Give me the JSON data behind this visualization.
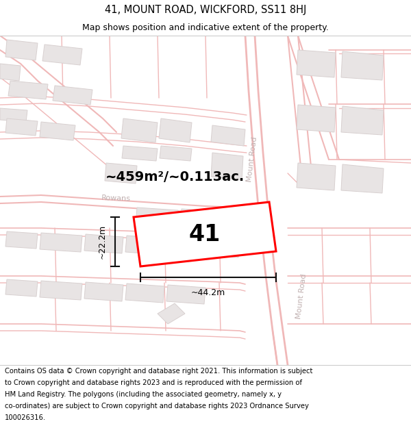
{
  "title_line1": "41, MOUNT ROAD, WICKFORD, SS11 8HJ",
  "title_line2": "Map shows position and indicative extent of the property.",
  "footer_text": "Contains OS data © Crown copyright and database right 2021. This information is subject to Crown copyright and database rights 2023 and is reproduced with the permission of HM Land Registry. The polygons (including the associated geometry, namely x, y co-ordinates) are subject to Crown copyright and database rights 2023 Ordnance Survey 100026316.",
  "area_label": "~459m²/~0.113ac.",
  "number_label": "41",
  "width_label": "~44.2m",
  "height_label": "~22.2m",
  "road_label_top": "Mount Road",
  "road_label_bot": "Mount Road",
  "street_label": "Rowans",
  "map_bg": "#ffffff",
  "road_line_color": "#f0b8b8",
  "road_fill_color": "#fde8e8",
  "building_color": "#e8e4e4",
  "building_edge": "#d8d0d0",
  "highlight_color": "#ff0000",
  "dim_color": "#111111",
  "label_color": "#c8b8b8",
  "title_fontsize": 10.5,
  "subtitle_fontsize": 9,
  "footer_fontsize": 7.2,
  "area_fontsize": 14,
  "number_fontsize": 24,
  "dim_fontsize": 9,
  "road_fontsize": 8
}
